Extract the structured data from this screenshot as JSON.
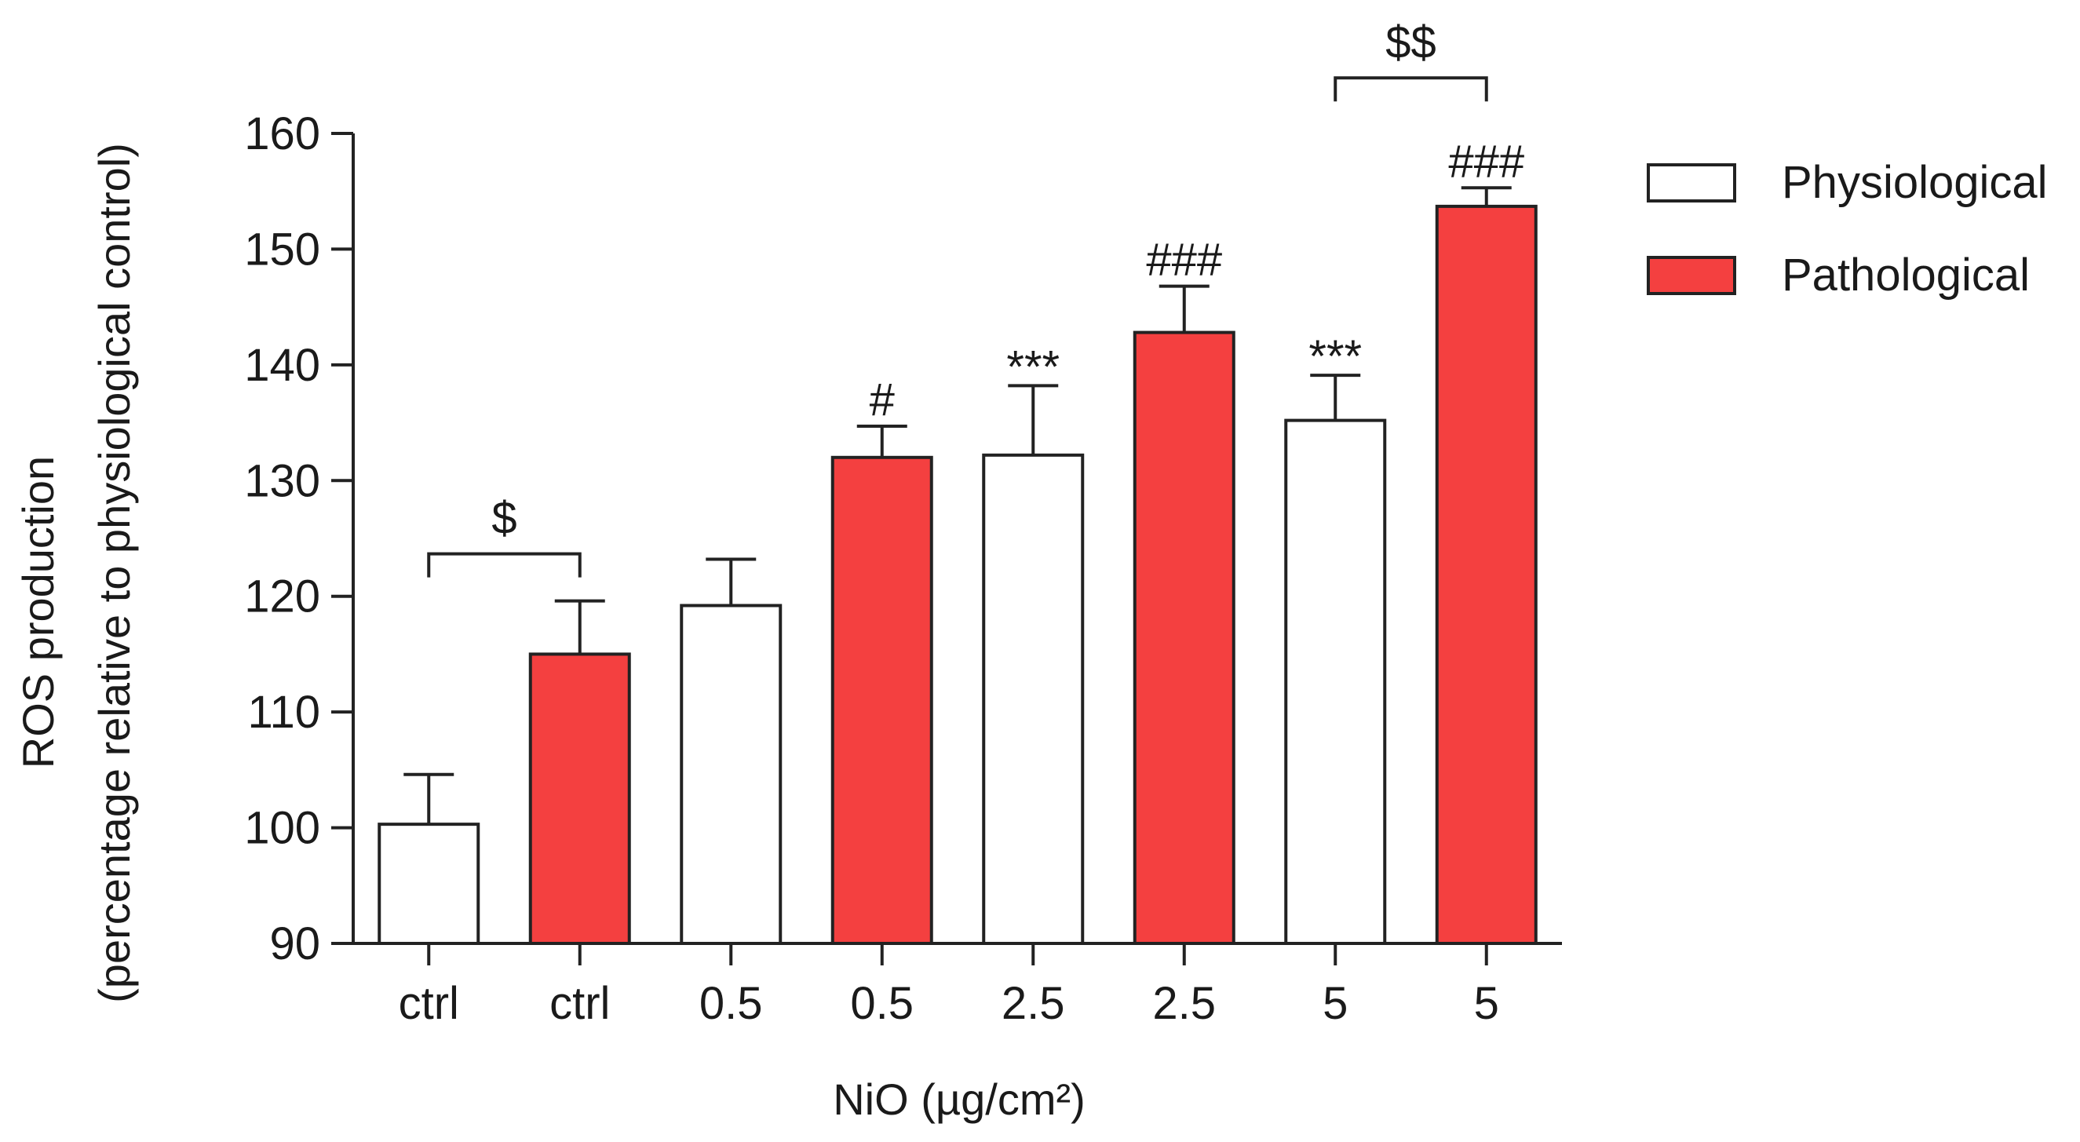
{
  "chart_data": {
    "type": "bar",
    "title": "",
    "xlabel": "NiO (µg/cm²)",
    "ylabel_line1": "ROS production",
    "ylabel_line2": "(percentage relative to physiological control)",
    "ylim": [
      90,
      160
    ],
    "yticks": [
      90,
      100,
      110,
      120,
      130,
      140,
      150,
      160
    ],
    "grid": false,
    "legend_position": "top-right",
    "colors": {
      "physiological": "#ffffff",
      "pathological": "#f44040",
      "stroke": "#222222"
    },
    "legend": [
      {
        "name": "Physiological",
        "color": "#ffffff"
      },
      {
        "name": "Pathological",
        "color": "#f44040"
      }
    ],
    "bars": [
      {
        "category": "ctrl",
        "series": "Physiological",
        "value": 100.3,
        "error": 4.3,
        "annotation": ""
      },
      {
        "category": "ctrl",
        "series": "Pathological",
        "value": 115.0,
        "error": 4.6,
        "annotation": ""
      },
      {
        "category": "0.5",
        "series": "Physiological",
        "value": 119.2,
        "error": 4.0,
        "annotation": ""
      },
      {
        "category": "0.5",
        "series": "Pathological",
        "value": 132.0,
        "error": 2.7,
        "annotation": "#"
      },
      {
        "category": "2.5",
        "series": "Physiological",
        "value": 132.2,
        "error": 6.0,
        "annotation": "***"
      },
      {
        "category": "2.5",
        "series": "Pathological",
        "value": 142.8,
        "error": 4.0,
        "annotation": "###"
      },
      {
        "category": "5",
        "series": "Physiological",
        "value": 135.2,
        "error": 3.9,
        "annotation": "***"
      },
      {
        "category": "5",
        "series": "Pathological",
        "value": 153.7,
        "error": 1.6,
        "annotation": "###"
      }
    ],
    "brackets": [
      {
        "from_bar": 0,
        "to_bar": 1,
        "label": "$"
      },
      {
        "from_bar": 6,
        "to_bar": 7,
        "label": "$$"
      }
    ]
  }
}
